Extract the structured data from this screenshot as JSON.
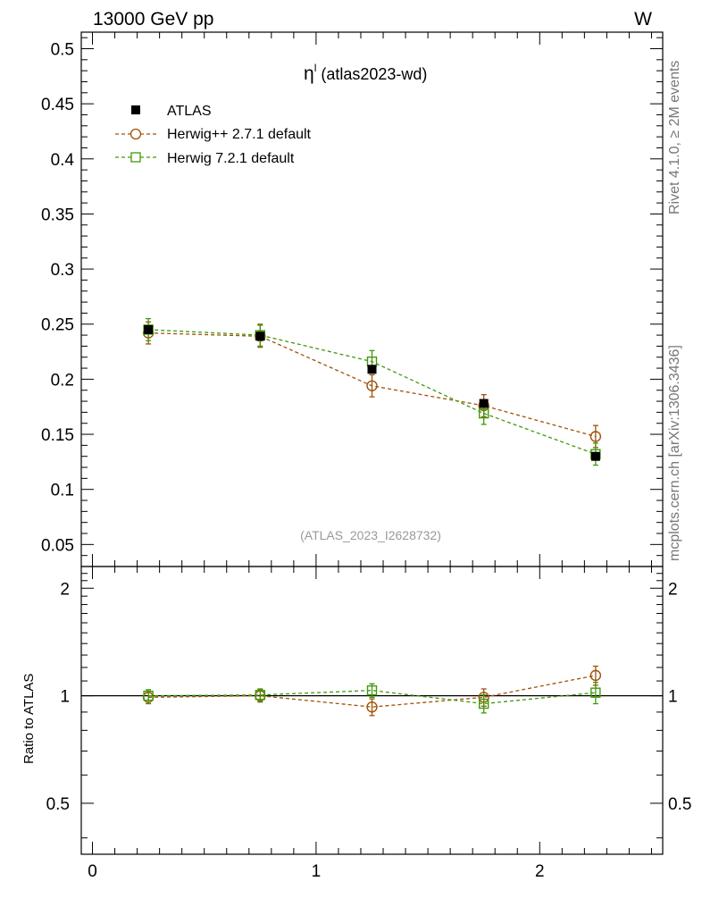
{
  "header": {
    "left": "13000 GeV pp",
    "right": "W"
  },
  "side": {
    "rivet": "Rivet 4.1.0, ≥ 2M events",
    "mcplots": "mcplots.cern.ch [arXiv:1306.3436]"
  },
  "chart_data": {
    "type": "scatter",
    "title_symbol": "η",
    "title_sup": "l",
    "title_rest": " (atlas2023-wd)",
    "analysis_id": "(ATLAS_2023_I2628732)",
    "xlim": [
      -0.05,
      2.55
    ],
    "x_ticks": [
      0,
      1,
      2
    ],
    "main": {
      "ylim": [
        0.03,
        0.515
      ],
      "y_ticks": [
        0.05,
        0.1,
        0.15,
        0.2,
        0.25,
        0.3,
        0.35,
        0.4,
        0.45,
        0.5
      ]
    },
    "ratio": {
      "ylabel": "Ratio to ATLAS",
      "log": true,
      "ylim": [
        0.36,
        2.3
      ],
      "y_ticks": [
        0.5,
        1,
        2
      ],
      "reference": 1
    },
    "series": [
      {
        "name": "ATLAS",
        "marker": "filled-square",
        "color": "#000000",
        "dashed": false,
        "x": [
          0.25,
          0.75,
          1.25,
          1.75,
          2.25
        ],
        "y": [
          0.245,
          0.239,
          0.209,
          0.178,
          0.13
        ],
        "yerr": [
          0.003,
          0.003,
          0.003,
          0.003,
          0.003
        ]
      },
      {
        "name": "Herwig++ 2.7.1 default",
        "marker": "open-circle",
        "color": "#a0520a",
        "dashed": true,
        "x": [
          0.25,
          0.75,
          1.25,
          1.75,
          2.25
        ],
        "y": [
          0.242,
          0.239,
          0.194,
          0.176,
          0.148
        ],
        "yerr": [
          0.01,
          0.01,
          0.01,
          0.01,
          0.01
        ],
        "ratio": [
          0.99,
          1.0,
          0.93,
          0.99,
          1.14
        ],
        "ratio_err": [
          0.04,
          0.04,
          0.05,
          0.055,
          0.07
        ]
      },
      {
        "name": "Herwig 7.2.1 default",
        "marker": "open-square",
        "color": "#3f9a0a",
        "dashed": true,
        "x": [
          0.25,
          0.75,
          1.25,
          1.75,
          2.25
        ],
        "y": [
          0.245,
          0.24,
          0.216,
          0.169,
          0.132
        ],
        "yerr": [
          0.01,
          0.01,
          0.01,
          0.01,
          0.01
        ],
        "ratio": [
          1.0,
          1.005,
          1.035,
          0.95,
          1.02
        ],
        "ratio_err": [
          0.04,
          0.04,
          0.045,
          0.055,
          0.07
        ]
      }
    ]
  }
}
